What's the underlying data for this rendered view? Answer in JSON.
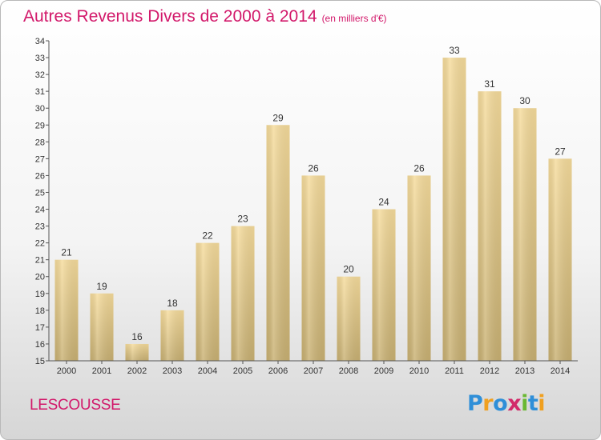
{
  "header": {
    "title": "Autres Revenus Divers de 2000 à 2014",
    "subtitle": "(en milliers d'€)"
  },
  "footer": {
    "commune": "LESCOUSSE",
    "brand": "Proxiti",
    "brand_letters": [
      {
        "char": "P",
        "color": "#2f8fd8"
      },
      {
        "char": "r",
        "color": "#f0a020"
      },
      {
        "char": "o",
        "color": "#2f8fd8"
      },
      {
        "char": "x",
        "color": "#d22a6a"
      },
      {
        "char": "i",
        "color": "#6ab832"
      },
      {
        "char": "t",
        "color": "#2f8fd8"
      },
      {
        "char": "i",
        "color": "#f0a020"
      }
    ]
  },
  "colors": {
    "accent": "#d2186a",
    "bar_top": "#f6dc9c",
    "bar_bottom": "#c9b173"
  },
  "chart_data": {
    "type": "bar",
    "categories": [
      "2000",
      "2001",
      "2002",
      "2003",
      "2004",
      "2005",
      "2006",
      "2007",
      "2008",
      "2009",
      "2010",
      "2011",
      "2012",
      "2013",
      "2014"
    ],
    "values": [
      21,
      19,
      16,
      18,
      22,
      23,
      29,
      26,
      20,
      24,
      26,
      33,
      31,
      30,
      27
    ],
    "ylim": [
      15,
      34
    ],
    "yticks": [
      15,
      16,
      17,
      18,
      19,
      20,
      21,
      22,
      23,
      24,
      25,
      26,
      27,
      28,
      29,
      30,
      31,
      32,
      33,
      34
    ],
    "xlabel": "",
    "ylabel": "",
    "grid": false,
    "data_labels": true
  }
}
